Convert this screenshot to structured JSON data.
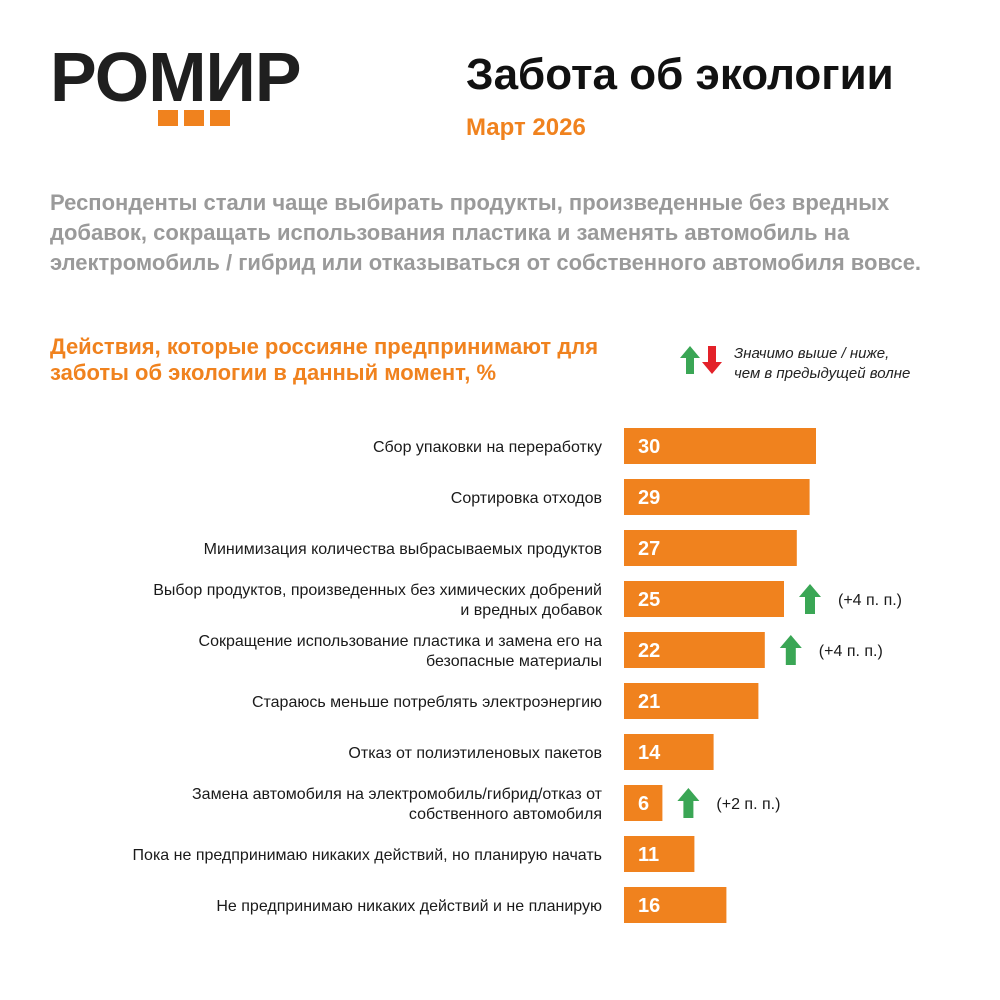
{
  "logo": {
    "text": "РОМИР"
  },
  "header": {
    "title": "Забота об экологии",
    "date": "Март 2026"
  },
  "summary": "Респонденты стали чаще выбирать продукты, произведенные без вредных добавок, сокращать использования пластика и заменять автомобиль на электромобиль / гибрид или отказываться от собственного автомобиля вовсе.",
  "legend": {
    "text_line1": "Значимо выше / ниже,",
    "text_line2": "чем в предыдущей волне",
    "up_color": "#3aa655",
    "down_color": "#e32129",
    "up_icon": "arrow-up-icon",
    "down_icon": "arrow-down-icon"
  },
  "colors": {
    "accent": "#f0821e",
    "label": "#1a1a1a"
  },
  "chart_data": {
    "type": "bar",
    "orientation": "horizontal",
    "title": "Действия, которые россияне предпринимают для заботы об экологии в данный момент, %",
    "unit": "%",
    "xlim": [
      0,
      30
    ],
    "categories": [
      [
        "Сбор упаковки на переработку"
      ],
      [
        "Сортировка отходов"
      ],
      [
        "Минимизация количества выбрасываемых продуктов"
      ],
      [
        "Выбор продуктов, произведенных без химических добрений",
        "и вредных добавок"
      ],
      [
        "Сокращение использование пластика и замена его на",
        "безопасные материалы"
      ],
      [
        "Стараюсь меньше потреблять электроэнергию"
      ],
      [
        "Отказ от полиэтиленовых пакетов"
      ],
      [
        "Замена автомобиля на электромобиль/гибрид/отказ от",
        "собственного автомобиля"
      ],
      [
        "Пока не предпринимаю никаких действий, но планирую начать"
      ],
      [
        "Не предпринимаю никаких действий и не планирую"
      ]
    ],
    "values": [
      30,
      29,
      27,
      25,
      22,
      21,
      14,
      6,
      11,
      16
    ],
    "changes": [
      null,
      null,
      null,
      "(+4 п. п.)",
      "(+4 п. п.)",
      null,
      null,
      "(+2 п. п.)",
      null,
      null
    ],
    "change_direction": [
      null,
      null,
      null,
      "up",
      "up",
      null,
      null,
      "up",
      null,
      null
    ]
  }
}
